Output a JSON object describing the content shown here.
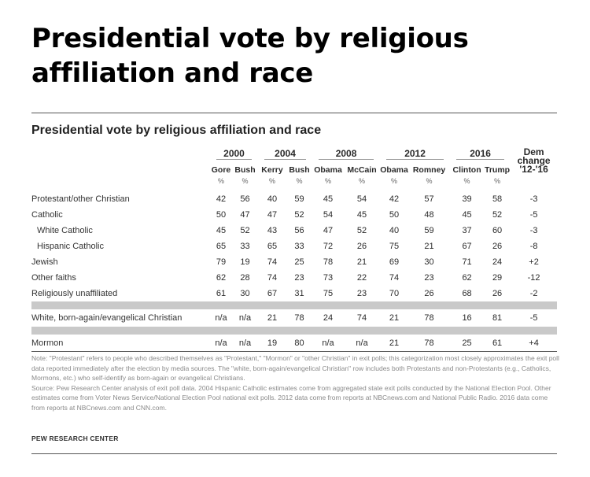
{
  "headline": "Presidential vote by religious affiliation and race",
  "chart_title": "Presidential vote by religious affiliation and race",
  "years": [
    "2000",
    "2004",
    "2008",
    "2012",
    "2016"
  ],
  "candidates": [
    "Gore",
    "Bush",
    "Kerry",
    "Bush",
    "Obama",
    "McCain",
    "Obama",
    "Romney",
    "Clinton",
    "Trump"
  ],
  "dem_change_header": [
    "Dem",
    "change",
    "'12-'16"
  ],
  "unit_symbol": "%",
  "rows": [
    {
      "label": "Protestant/other Christian",
      "indent": false,
      "values": [
        "42",
        "56",
        "40",
        "59",
        "45",
        "54",
        "42",
        "57",
        "39",
        "58"
      ],
      "change": "-3"
    },
    {
      "label": "Catholic",
      "indent": false,
      "values": [
        "50",
        "47",
        "47",
        "52",
        "54",
        "45",
        "50",
        "48",
        "45",
        "52"
      ],
      "change": "-5"
    },
    {
      "label": "White Catholic",
      "indent": true,
      "values": [
        "45",
        "52",
        "43",
        "56",
        "47",
        "52",
        "40",
        "59",
        "37",
        "60"
      ],
      "change": "-3"
    },
    {
      "label": "Hispanic Catholic",
      "indent": true,
      "values": [
        "65",
        "33",
        "65",
        "33",
        "72",
        "26",
        "75",
        "21",
        "67",
        "26"
      ],
      "change": "-8"
    },
    {
      "label": "Jewish",
      "indent": false,
      "values": [
        "79",
        "19",
        "74",
        "25",
        "78",
        "21",
        "69",
        "30",
        "71",
        "24"
      ],
      "change": "+2"
    },
    {
      "label": "Other faiths",
      "indent": false,
      "values": [
        "62",
        "28",
        "74",
        "23",
        "73",
        "22",
        "74",
        "23",
        "62",
        "29"
      ],
      "change": "-12"
    },
    {
      "label": "Religiously unaffiliated",
      "indent": false,
      "values": [
        "61",
        "30",
        "67",
        "31",
        "75",
        "23",
        "70",
        "26",
        "68",
        "26"
      ],
      "change": "-2"
    },
    {
      "label": "White, born-again/evangelical Christian",
      "indent": false,
      "values": [
        "n/a",
        "n/a",
        "21",
        "78",
        "24",
        "74",
        "21",
        "78",
        "16",
        "81"
      ],
      "change": "-5"
    },
    {
      "label": "Mormon",
      "indent": false,
      "values": [
        "n/a",
        "n/a",
        "19",
        "80",
        "n/a",
        "n/a",
        "21",
        "78",
        "25",
        "61"
      ],
      "change": "+4"
    }
  ],
  "note": "Note: \"Protestant\" refers to people who described themselves as \"Protestant,\" \"Mormon\" or \"other Christian\" in exit polls; this categorization most closely approximates the exit poll data reported immediately after the election by media sources. The \"white, born-again/evangelical Christian\" row includes both Protestants and non-Protestants (e.g., Catholics, Mormons, etc.) who self-identify as born-again or evangelical Christians.",
  "source": "Source: Pew Research Center analysis of exit poll data. 2004 Hispanic Catholic estimates come from aggregated state exit polls conducted by the National Election Pool. Other estimates come from Voter News Service/National Election Pool national exit polls. 2012 data come from reports at NBCnews.com and National Public Radio. 2016 data come from reports at NBCnews.com and CNN.com.",
  "credit": "PEW RESEARCH CENTER",
  "chart_data": {
    "type": "table",
    "title": "Presidential vote by religious affiliation and race",
    "columns": [
      "2000 Gore",
      "2000 Bush",
      "2004 Kerry",
      "2004 Bush",
      "2008 Obama",
      "2008 McCain",
      "2012 Obama",
      "2012 Romney",
      "2016 Clinton",
      "2016 Trump",
      "Dem change '12-'16"
    ],
    "rows": [
      {
        "group": "Protestant/other Christian",
        "values": [
          42,
          56,
          40,
          59,
          45,
          54,
          42,
          57,
          39,
          58,
          -3
        ]
      },
      {
        "group": "Catholic",
        "values": [
          50,
          47,
          47,
          52,
          54,
          45,
          50,
          48,
          45,
          52,
          -5
        ]
      },
      {
        "group": "White Catholic",
        "values": [
          45,
          52,
          43,
          56,
          47,
          52,
          40,
          59,
          37,
          60,
          -3
        ]
      },
      {
        "group": "Hispanic Catholic",
        "values": [
          65,
          33,
          65,
          33,
          72,
          26,
          75,
          21,
          67,
          26,
          -8
        ]
      },
      {
        "group": "Jewish",
        "values": [
          79,
          19,
          74,
          25,
          78,
          21,
          69,
          30,
          71,
          24,
          2
        ]
      },
      {
        "group": "Other faiths",
        "values": [
          62,
          28,
          74,
          23,
          73,
          22,
          74,
          23,
          62,
          29,
          -12
        ]
      },
      {
        "group": "Religiously unaffiliated",
        "values": [
          61,
          30,
          67,
          31,
          75,
          23,
          70,
          26,
          68,
          26,
          -2
        ]
      },
      {
        "group": "White, born-again/evangelical Christian",
        "values": [
          null,
          null,
          21,
          78,
          24,
          74,
          21,
          78,
          16,
          81,
          -5
        ]
      },
      {
        "group": "Mormon",
        "values": [
          null,
          null,
          19,
          80,
          null,
          null,
          21,
          78,
          25,
          61,
          4
        ]
      }
    ]
  }
}
